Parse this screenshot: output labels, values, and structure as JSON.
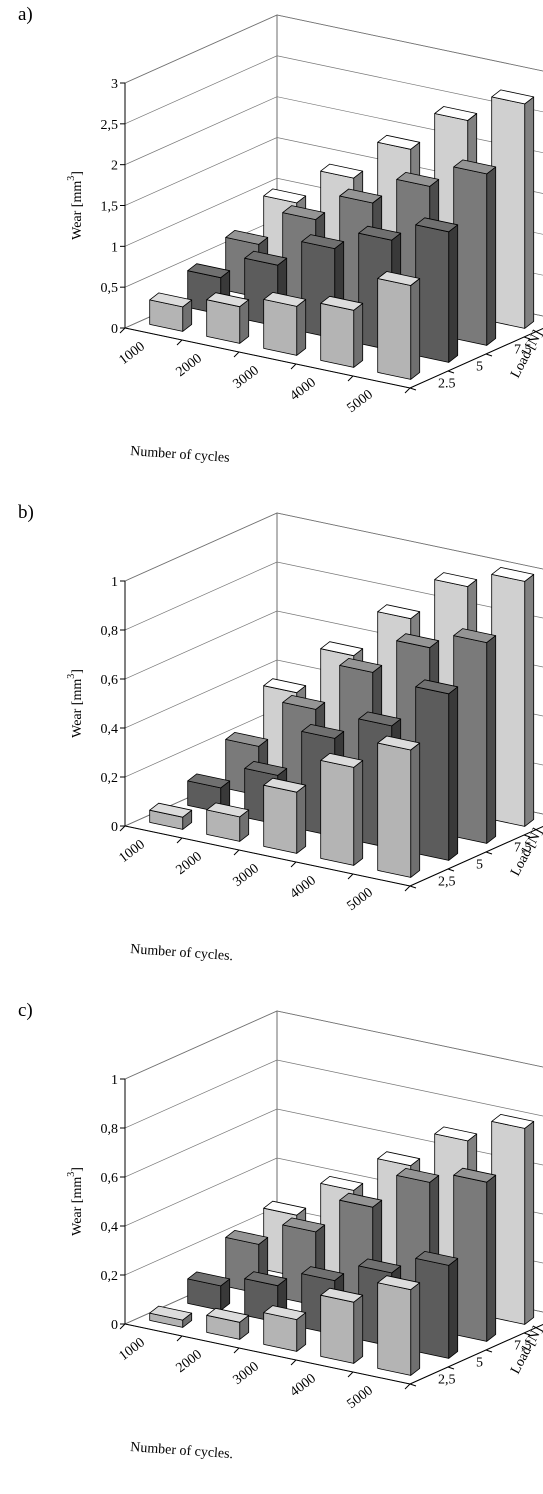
{
  "chart_data": [
    {
      "panel_label": "a)",
      "type": "bar",
      "bar_style": "3d",
      "categories": [
        "1000",
        "2000",
        "3000",
        "4000",
        "5000"
      ],
      "xlabel": "Number of cycles",
      "zlabel": "Load [N]",
      "ylabel": "Wear [mm",
      "ylabel_superscript": "3",
      "ylabel_suffix": "]",
      "ylim": [
        0,
        3
      ],
      "y_ticks": [
        "0",
        "0,5",
        "1",
        "1,5",
        "2",
        "2,5",
        "3"
      ],
      "series": [
        {
          "name": "2.5",
          "values": [
            0.3,
            0.45,
            0.6,
            0.7,
            1.15
          ]
        },
        {
          "name": "5",
          "values": [
            0.45,
            0.75,
            1.1,
            1.35,
            1.6
          ]
        },
        {
          "name": "7.5",
          "values": [
            0.65,
            1.1,
            1.45,
            1.8,
            2.1
          ]
        },
        {
          "name": "10",
          "values": [
            0.95,
            1.4,
            1.9,
            2.4,
            2.75
          ]
        }
      ],
      "grid": true,
      "colors": {
        "2.5": "#b4b4b4",
        "5": "#5c5c5c",
        "7.5": "#7a7a7a",
        "10": "#d0d0d0"
      }
    },
    {
      "panel_label": "b)",
      "type": "bar",
      "bar_style": "3d",
      "categories": [
        "1000",
        "2000",
        "3000",
        "4000",
        "5000"
      ],
      "xlabel": "Number of cycles.",
      "zlabel": "Load [N]",
      "ylabel": "Wear [mm",
      "ylabel_superscript": "3",
      "ylabel_suffix": "]",
      "ylim": [
        0,
        1
      ],
      "y_ticks": [
        "0",
        "0,2",
        "0,4",
        "0,6",
        "0,8",
        "1"
      ],
      "series": [
        {
          "name": "2,5",
          "values": [
            0.05,
            0.1,
            0.25,
            0.4,
            0.52
          ]
        },
        {
          "name": "5",
          "values": [
            0.1,
            0.2,
            0.4,
            0.5,
            0.68
          ]
        },
        {
          "name": "7,5",
          "values": [
            0.2,
            0.4,
            0.6,
            0.75,
            0.82
          ]
        },
        {
          "name": "10",
          "values": [
            0.35,
            0.55,
            0.75,
            0.93,
            1.0
          ]
        }
      ],
      "grid": true,
      "colors": {
        "2,5": "#b4b4b4",
        "5": "#5c5c5c",
        "7,5": "#7a7a7a",
        "10": "#d0d0d0"
      }
    },
    {
      "panel_label": "c)",
      "type": "bar",
      "bar_style": "3d",
      "categories": [
        "1000",
        "2000",
        "3000",
        "4000",
        "5000"
      ],
      "xlabel": "Number of cycles.",
      "zlabel": "Load [N]",
      "ylabel": "Wear [mm",
      "ylabel_superscript": "3",
      "ylabel_suffix": "]",
      "ylim": [
        0,
        1
      ],
      "y_ticks": [
        "0",
        "0,2",
        "0,4",
        "0,6",
        "0,8",
        "1"
      ],
      "series": [
        {
          "name": "2,5",
          "values": [
            0.03,
            0.07,
            0.13,
            0.25,
            0.35
          ]
        },
        {
          "name": "5",
          "values": [
            0.1,
            0.15,
            0.22,
            0.3,
            0.38
          ]
        },
        {
          "name": "7,5",
          "values": [
            0.2,
            0.3,
            0.45,
            0.6,
            0.65
          ]
        },
        {
          "name": "10",
          "values": [
            0.25,
            0.4,
            0.55,
            0.7,
            0.8
          ]
        }
      ],
      "grid": true,
      "colors": {
        "2,5": "#b4b4b4",
        "5": "#5c5c5c",
        "7,5": "#7a7a7a",
        "10": "#d0d0d0"
      }
    }
  ]
}
